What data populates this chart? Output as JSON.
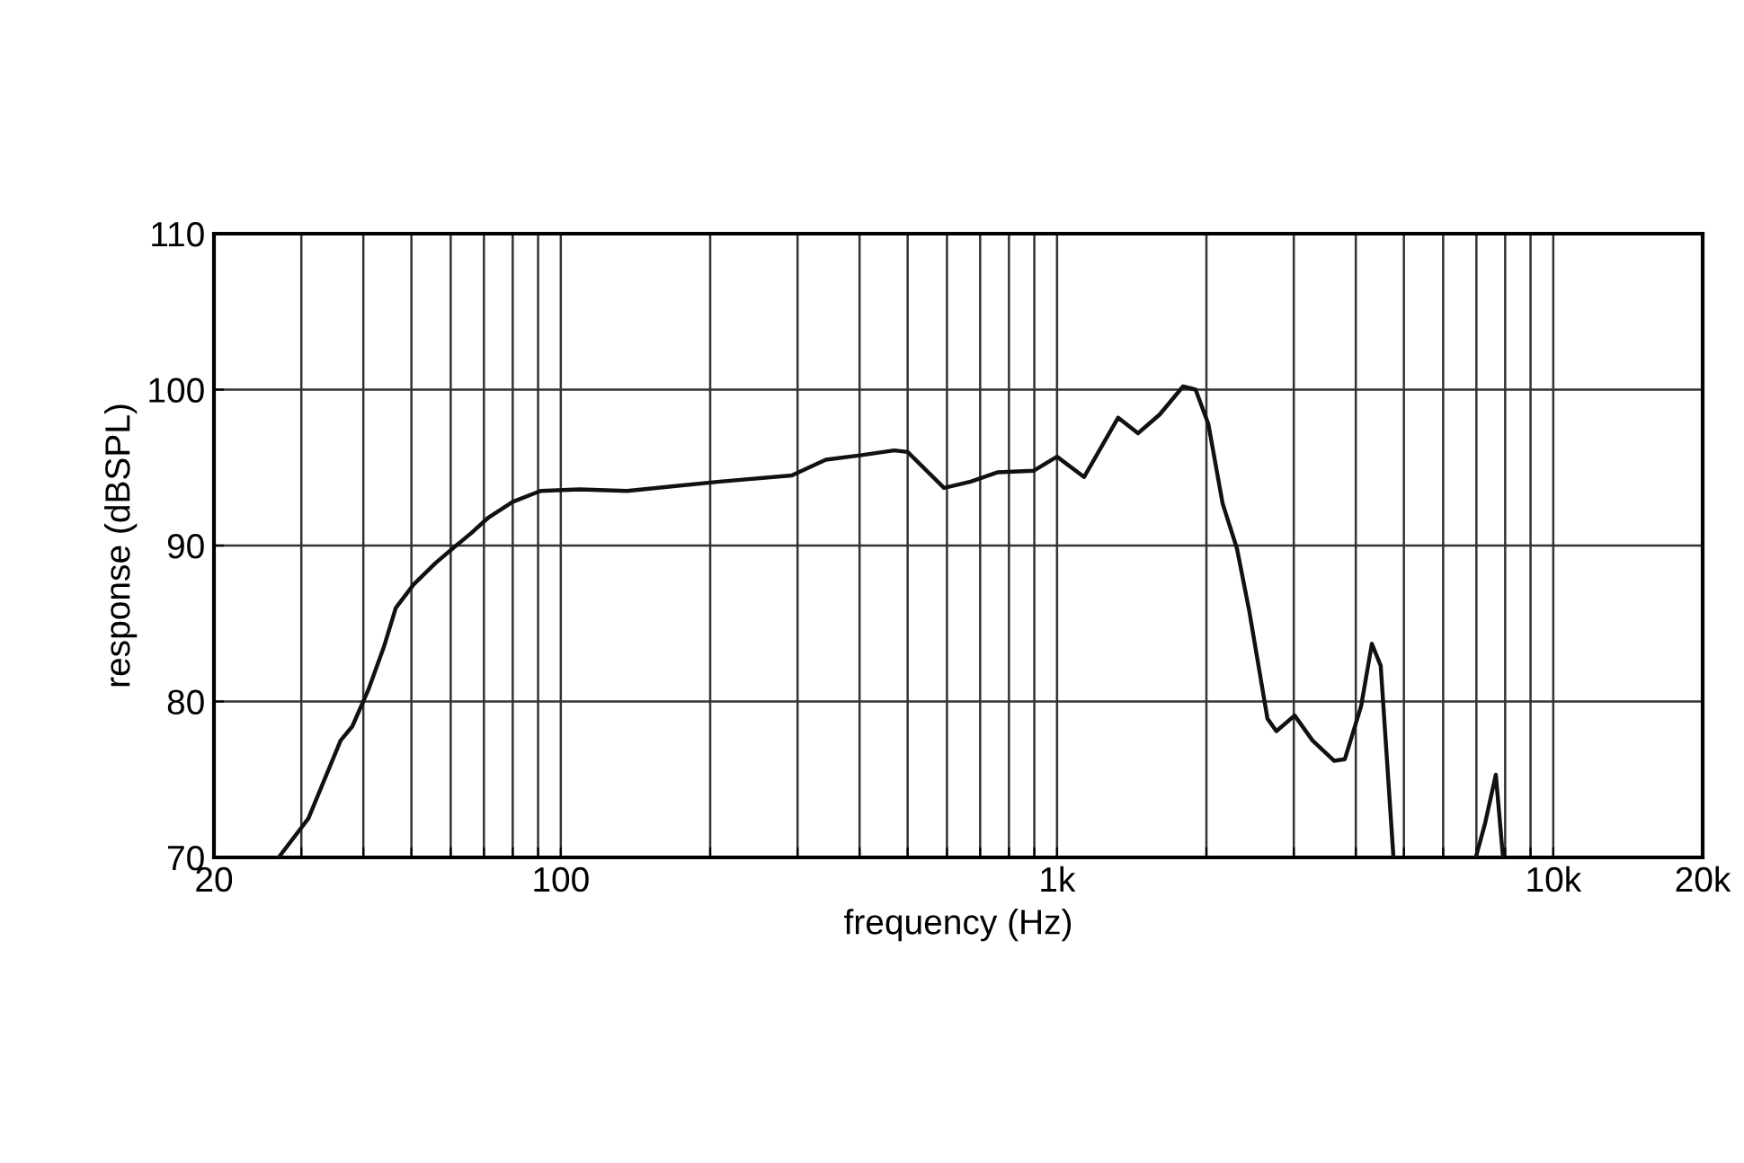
{
  "chart_data": {
    "type": "line",
    "xlabel": "frequency (Hz)",
    "ylabel": "response (dBSPL)",
    "log": "x",
    "grid": true,
    "line_style": "solid",
    "marker": "none",
    "xlim": [
      20,
      20000
    ],
    "ylim": [
      70,
      110
    ],
    "xticks": [
      20,
      {
        "value": 30,
        "label": null
      },
      {
        "value": 40,
        "label": null
      },
      {
        "value": 50,
        "label": null
      },
      {
        "value": 60,
        "label": null
      },
      {
        "value": 70,
        "label": null
      },
      {
        "value": 80,
        "label": null
      },
      {
        "value": 90,
        "label": null
      },
      100,
      {
        "value": 200,
        "label": null
      },
      {
        "value": 300,
        "label": null
      },
      {
        "value": 400,
        "label": null
      },
      {
        "value": 500,
        "label": null
      },
      {
        "value": 600,
        "label": null
      },
      {
        "value": 700,
        "label": null
      },
      {
        "value": 800,
        "label": null
      },
      {
        "value": 900,
        "label": null
      },
      {
        "value": 1000,
        "label": "1k"
      },
      {
        "value": 2000,
        "label": null
      },
      {
        "value": 3000,
        "label": null
      },
      {
        "value": 4000,
        "label": null
      },
      {
        "value": 5000,
        "label": null
      },
      {
        "value": 6000,
        "label": null
      },
      {
        "value": 7000,
        "label": null
      },
      {
        "value": 8000,
        "label": null
      },
      {
        "value": 9000,
        "label": null
      },
      {
        "value": 10000,
        "label": "10k"
      },
      {
        "value": 20000,
        "label": "20k"
      }
    ],
    "yticks": [
      70,
      80,
      90,
      100,
      110
    ],
    "series": [
      {
        "color": "#111111",
        "x": [
          27,
          31,
          36,
          38,
          41,
          44,
          46.5,
          50.5,
          56,
          61,
          66,
          71.5,
          80,
          91,
          109,
          136,
          209,
          292,
          342,
          404,
          470,
          500,
          592,
          670,
          760,
          898,
          1000,
          1134,
          1328,
          1456,
          1610,
          1794,
          1902,
          2018,
          2156,
          2305,
          2440,
          2655,
          2767,
          3012,
          3272,
          3616,
          3802,
          4100,
          4310,
          4490,
          4764,
          5000,
          6980,
          7290,
          7660,
          7920
        ],
        "values": [
          70,
          72.5,
          77.5,
          78.4,
          80.8,
          83.5,
          86,
          87.5,
          88.9,
          89.9,
          90.8,
          91.8,
          92.8,
          93.5,
          93.6,
          93.5,
          94.1,
          94.5,
          95.5,
          95.8,
          96.1,
          96,
          93.7,
          94.1,
          94.7,
          94.8,
          95.7,
          94.4,
          98.2,
          97.2,
          98.4,
          100.2,
          100,
          97.8,
          92.7,
          89.8,
          85.8,
          78.9,
          78.1,
          79.1,
          77.5,
          76.2,
          76.3,
          79.7,
          83.7,
          82.3,
          70,
          null,
          70,
          72.2,
          75.3,
          70
        ]
      }
    ]
  }
}
